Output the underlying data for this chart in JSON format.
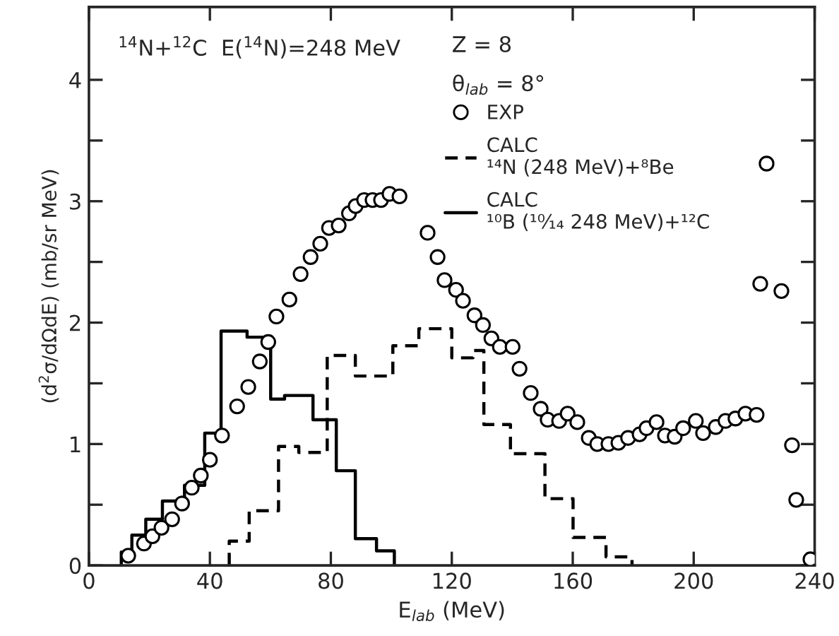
{
  "chart_data": {
    "type": "scatter",
    "xlabel": "E$_{lab}$ (MeV)",
    "ylabel": "(d$^{2}$σ/dΩdE) (mb/sr MeV)",
    "annotations": [
      "$^{14}$N+$^{12}$C  E($^{14}$N)=248 MeV",
      "Z = 8",
      "θ$_{lab}$ = 8°"
    ],
    "xlim": [
      0,
      240
    ],
    "xticks": [
      0,
      40,
      80,
      120,
      160,
      200,
      240
    ],
    "ylim": [
      0,
      4.6
    ],
    "yticks": [
      0,
      {
        "value": 0.5,
        "label": null
      },
      1,
      {
        "value": 1.5,
        "label": null
      },
      2,
      {
        "value": 2.5,
        "label": null
      },
      3,
      {
        "value": 3.5,
        "label": null
      },
      4
    ],
    "grid": false,
    "legend": "top",
    "series": [
      {
        "name": "EXP",
        "color": "#000000",
        "marker": "circle",
        "x": [
          13,
          18.2,
          21,
          24,
          27.5,
          30.8,
          34,
          37,
          40,
          44,
          49,
          52.7,
          56.5,
          59.3,
          62,
          66.3,
          70,
          73.3,
          76.5,
          79.4,
          82.6,
          86,
          88.2,
          91,
          93.8,
          96.6,
          99.4,
          102.7,
          112,
          115.3,
          117.6,
          121.4,
          123.7,
          127.5,
          130.3,
          133.1,
          135.9,
          140.1,
          142.4,
          146.1,
          149.4,
          151.7,
          155.5,
          158.3,
          161.5,
          165.3,
          168.1,
          171.8,
          175.1,
          178.3,
          182.1,
          184.4,
          187.7,
          190.5,
          193.7,
          196.5,
          200.7,
          203.1,
          207.3,
          210.5,
          213.8,
          217.1,
          220.8,
          222,
          224.1,
          229,
          232.5,
          233.9,
          238.6
        ],
        "values": [
          0.08,
          0.18,
          0.24,
          0.31,
          0.38,
          0.51,
          0.64,
          0.74,
          0.87,
          1.07,
          1.31,
          1.47,
          1.68,
          1.84,
          2.05,
          2.19,
          2.4,
          2.54,
          2.65,
          2.78,
          2.8,
          2.9,
          2.96,
          3.01,
          3.01,
          3.01,
          3.06,
          3.04,
          2.74,
          2.54,
          2.35,
          2.27,
          2.18,
          2.06,
          1.98,
          1.87,
          1.8,
          1.8,
          1.62,
          1.42,
          1.29,
          1.2,
          1.19,
          1.25,
          1.18,
          1.05,
          1.0,
          1.0,
          1.01,
          1.05,
          1.08,
          1.13,
          1.18,
          1.07,
          1.06,
          1.13,
          1.19,
          1.09,
          1.14,
          1.19,
          1.21,
          1.25,
          1.24,
          2.32,
          3.31,
          2.26,
          0.99,
          0.54,
          0.05
        ]
      },
      {
        "name": "CALC\n¹⁴N (248 MeV)+⁸Be",
        "type": "step",
        "color": "#000000",
        "line_style": "dashed",
        "marker": "none",
        "x": [
          46.4,
          46.4,
          53,
          62.7,
          69.4,
          78.8,
          88.1,
          100.5,
          109.1,
          120,
          127,
          130.6,
          139.4,
          150.8,
          160.1,
          171,
          179.6
        ],
        "values": [
          0,
          0.2,
          0.45,
          0.98,
          0.93,
          1.73,
          1.56,
          1.81,
          1.95,
          1.71,
          1.77,
          1.16,
          0.92,
          0.55,
          0.23,
          0.07,
          0
        ]
      },
      {
        "name": "CALC\n¹⁰B (¹⁰⁄₁₄ 248 MeV)+¹²C",
        "type": "step",
        "color": "#000000",
        "line_style": "solid",
        "marker": "none",
        "x": [
          10.7,
          10.7,
          14.2,
          18.8,
          24.3,
          31.6,
          38.3,
          43.7,
          52.3,
          60.1,
          64.7,
          74.1,
          81.8,
          88.1,
          95.1,
          101
        ],
        "values": [
          0,
          0.11,
          0.25,
          0.38,
          0.53,
          0.66,
          1.09,
          1.93,
          1.88,
          1.37,
          1.4,
          1.2,
          0.78,
          0.22,
          0.12,
          0
        ]
      }
    ]
  }
}
